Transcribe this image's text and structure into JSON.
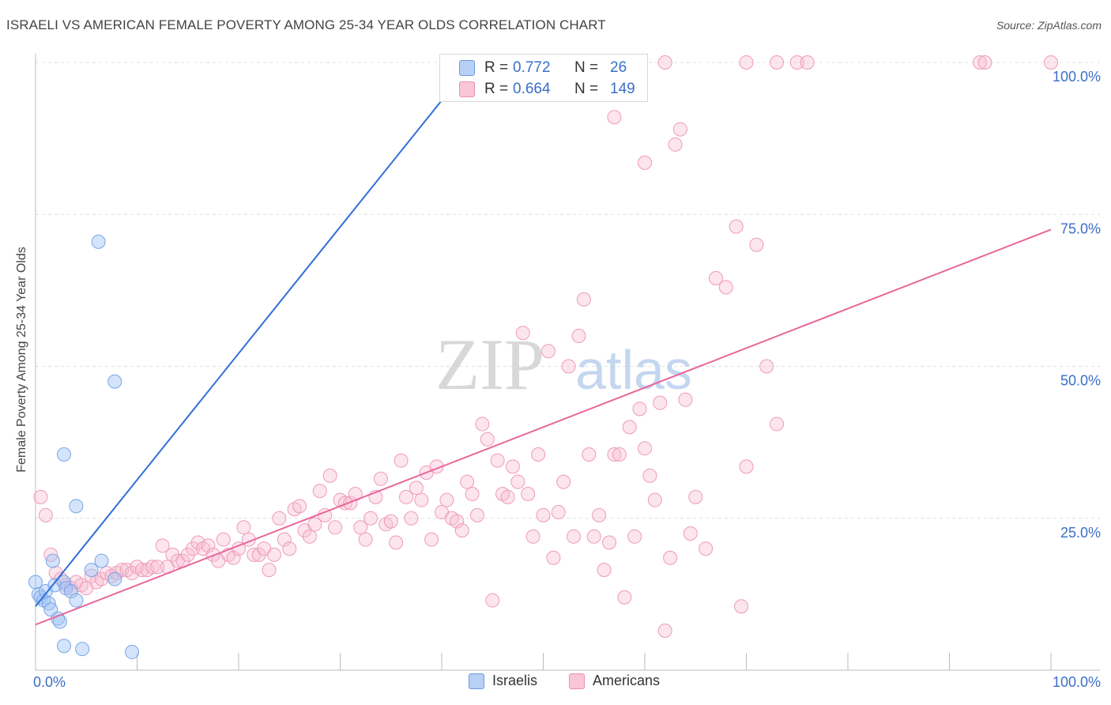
{
  "header": {
    "title": "ISRAELI VS AMERICAN FEMALE POVERTY AMONG 25-34 YEAR OLDS CORRELATION CHART",
    "source": "Source: ZipAtlas.com"
  },
  "watermark": {
    "zip": "ZIP",
    "atlas": "atlas"
  },
  "legend": {
    "rows": [
      {
        "r_label": "R =",
        "r_value": "0.772",
        "n_label": "N =",
        "n_value": "26",
        "fill": "#b8d0f5",
        "stroke": "#6c9ae0"
      },
      {
        "r_label": "R =",
        "r_value": "0.664",
        "n_label": "N =",
        "n_value": "149",
        "fill": "#f9c6d6",
        "stroke": "#ec8fb0"
      }
    ]
  },
  "bottom_legend": {
    "items": [
      {
        "label": "Israelis",
        "fill": "#b8d0f5",
        "stroke": "#6c9ae0"
      },
      {
        "label": "Americans",
        "fill": "#f9c6d6",
        "stroke": "#ec8fb0"
      }
    ]
  },
  "colors": {
    "israeli_line": "#2f6fd6",
    "american_line": "#e8679a",
    "israeli_fill": "rgba(160,195,245,0.45)",
    "israeli_stroke": "#7aa6e6",
    "american_fill": "rgba(248,190,210,0.4)",
    "american_stroke": "#ef9ab9",
    "tick_text": "#3a6fc8"
  },
  "chart_data": {
    "type": "scatter",
    "title": "ISRAELI VS AMERICAN FEMALE POVERTY AMONG 25-34 YEAR OLDS CORRELATION CHART",
    "xlabel": "",
    "ylabel": "Female Poverty Among 25-34 Year Olds",
    "xlim": [
      0,
      100
    ],
    "ylim": [
      0,
      100
    ],
    "x_tick_labels": [
      "0.0%",
      "100.0%"
    ],
    "y_tick_labels": [
      "25.0%",
      "50.0%",
      "75.0%",
      "100.0%"
    ],
    "y_ticks": [
      25,
      50,
      75,
      100
    ],
    "grid": true,
    "legend_position": "top-center",
    "series": [
      {
        "name": "Israelis",
        "r": 0.772,
        "n": 26,
        "trend": {
          "x": [
            0.0,
            43.0
          ],
          "y": [
            10.5,
            100.0
          ]
        },
        "points": [
          [
            0.0,
            14.5
          ],
          [
            0.3,
            12.5
          ],
          [
            0.5,
            12.0
          ],
          [
            0.8,
            11.5
          ],
          [
            1.0,
            13.0
          ],
          [
            1.3,
            11.0
          ],
          [
            1.5,
            10.0
          ],
          [
            1.7,
            18.0
          ],
          [
            1.9,
            14.0
          ],
          [
            2.2,
            8.5
          ],
          [
            2.4,
            8.0
          ],
          [
            2.8,
            14.5
          ],
          [
            3.0,
            13.5
          ],
          [
            3.5,
            13.0
          ],
          [
            4.0,
            11.5
          ],
          [
            2.8,
            35.5
          ],
          [
            4.0,
            27.0
          ],
          [
            2.8,
            4.0
          ],
          [
            4.6,
            3.5
          ],
          [
            5.5,
            16.5
          ],
          [
            6.5,
            18.0
          ],
          [
            7.8,
            15.0
          ],
          [
            9.5,
            3.0
          ],
          [
            6.2,
            70.5
          ],
          [
            7.8,
            47.5
          ],
          [
            43.3,
            100.0
          ]
        ]
      },
      {
        "name": "Americans",
        "r": 0.664,
        "n": 149,
        "trend": {
          "x": [
            0.0,
            100.0
          ],
          "y": [
            7.5,
            72.5
          ]
        },
        "points": [
          [
            0.5,
            28.5
          ],
          [
            1.0,
            25.5
          ],
          [
            1.5,
            19.0
          ],
          [
            2.0,
            16.0
          ],
          [
            2.5,
            15.0
          ],
          [
            3.0,
            14.0
          ],
          [
            3.5,
            13.5
          ],
          [
            4.0,
            14.5
          ],
          [
            4.5,
            14.0
          ],
          [
            5.0,
            13.5
          ],
          [
            5.5,
            15.5
          ],
          [
            6.0,
            14.5
          ],
          [
            6.5,
            15.0
          ],
          [
            7.0,
            16.0
          ],
          [
            7.5,
            15.5
          ],
          [
            8.0,
            16.0
          ],
          [
            8.5,
            16.5
          ],
          [
            9.0,
            16.5
          ],
          [
            9.5,
            16.0
          ],
          [
            10.0,
            17.0
          ],
          [
            10.5,
            16.5
          ],
          [
            11.0,
            16.5
          ],
          [
            11.5,
            17.0
          ],
          [
            12.0,
            17.0
          ],
          [
            12.5,
            20.5
          ],
          [
            13.0,
            17.0
          ],
          [
            13.5,
            19.0
          ],
          [
            14.0,
            18.0
          ],
          [
            14.5,
            18.0
          ],
          [
            15.0,
            19.0
          ],
          [
            15.5,
            20.0
          ],
          [
            16.0,
            21.0
          ],
          [
            16.5,
            20.0
          ],
          [
            17.0,
            20.5
          ],
          [
            17.5,
            19.0
          ],
          [
            18.0,
            18.0
          ],
          [
            18.5,
            21.5
          ],
          [
            19.0,
            19.0
          ],
          [
            19.5,
            18.5
          ],
          [
            20.0,
            20.0
          ],
          [
            20.5,
            23.5
          ],
          [
            21.0,
            21.5
          ],
          [
            21.5,
            19.0
          ],
          [
            22.0,
            19.0
          ],
          [
            22.5,
            20.0
          ],
          [
            23.0,
            16.5
          ],
          [
            23.5,
            19.0
          ],
          [
            24.0,
            25.0
          ],
          [
            24.5,
            21.5
          ],
          [
            25.0,
            20.0
          ],
          [
            25.5,
            26.5
          ],
          [
            26.0,
            27.0
          ],
          [
            26.5,
            23.0
          ],
          [
            27.0,
            22.0
          ],
          [
            27.5,
            24.0
          ],
          [
            28.0,
            29.5
          ],
          [
            28.5,
            25.5
          ],
          [
            29.0,
            32.0
          ],
          [
            29.5,
            23.5
          ],
          [
            30.0,
            28.0
          ],
          [
            30.5,
            27.5
          ],
          [
            31.0,
            27.5
          ],
          [
            31.5,
            29.0
          ],
          [
            32.0,
            23.5
          ],
          [
            32.5,
            21.5
          ],
          [
            33.0,
            25.0
          ],
          [
            33.5,
            28.5
          ],
          [
            34.0,
            31.5
          ],
          [
            34.5,
            24.0
          ],
          [
            35.0,
            24.5
          ],
          [
            35.5,
            21.0
          ],
          [
            36.0,
            34.5
          ],
          [
            36.5,
            28.5
          ],
          [
            37.0,
            25.0
          ],
          [
            37.5,
            30.0
          ],
          [
            38.0,
            28.0
          ],
          [
            38.5,
            32.5
          ],
          [
            39.0,
            21.5
          ],
          [
            39.5,
            33.5
          ],
          [
            40.0,
            26.0
          ],
          [
            40.5,
            28.0
          ],
          [
            41.0,
            25.0
          ],
          [
            41.5,
            24.5
          ],
          [
            42.0,
            23.0
          ],
          [
            42.5,
            31.0
          ],
          [
            43.0,
            29.0
          ],
          [
            43.5,
            25.5
          ],
          [
            44.0,
            40.5
          ],
          [
            44.5,
            38.0
          ],
          [
            45.0,
            11.5
          ],
          [
            45.5,
            34.5
          ],
          [
            46.0,
            29.0
          ],
          [
            46.5,
            28.5
          ],
          [
            47.0,
            33.5
          ],
          [
            47.5,
            31.0
          ],
          [
            48.0,
            55.5
          ],
          [
            48.5,
            29.0
          ],
          [
            49.0,
            22.0
          ],
          [
            49.5,
            35.5
          ],
          [
            50.0,
            25.5
          ],
          [
            50.5,
            52.5
          ],
          [
            51.0,
            18.5
          ],
          [
            51.5,
            26.0
          ],
          [
            52.0,
            31.0
          ],
          [
            52.5,
            50.0
          ],
          [
            53.0,
            22.0
          ],
          [
            53.5,
            55.0
          ],
          [
            54.0,
            61.0
          ],
          [
            54.5,
            35.5
          ],
          [
            55.0,
            22.0
          ],
          [
            55.5,
            25.5
          ],
          [
            56.0,
            16.5
          ],
          [
            56.5,
            21.0
          ],
          [
            57.0,
            35.5
          ],
          [
            57.5,
            35.5
          ],
          [
            58.0,
            12.0
          ],
          [
            58.5,
            40.0
          ],
          [
            59.0,
            22.0
          ],
          [
            59.5,
            43.0
          ],
          [
            60.0,
            36.5
          ],
          [
            60.5,
            32.0
          ],
          [
            61.0,
            28.0
          ],
          [
            61.5,
            44.0
          ],
          [
            62.0,
            6.5
          ],
          [
            62.5,
            18.5
          ],
          [
            63.0,
            86.5
          ],
          [
            63.5,
            89.0
          ],
          [
            64.0,
            44.5
          ],
          [
            64.5,
            22.5
          ],
          [
            65.0,
            28.5
          ],
          [
            66.0,
            20.0
          ],
          [
            67.0,
            64.5
          ],
          [
            68.0,
            63.0
          ],
          [
            69.0,
            73.0
          ],
          [
            69.5,
            10.5
          ],
          [
            70.0,
            33.5
          ],
          [
            71.0,
            70.0
          ],
          [
            72.0,
            50.0
          ],
          [
            73.0,
            40.5
          ],
          [
            57.0,
            91.0
          ],
          [
            60.0,
            83.5
          ],
          [
            62.0,
            100.0
          ],
          [
            70.0,
            100.0
          ],
          [
            73.0,
            100.0
          ],
          [
            75.0,
            100.0
          ],
          [
            76.0,
            100.0
          ],
          [
            93.0,
            100.0
          ],
          [
            93.5,
            100.0
          ],
          [
            100.0,
            100.0
          ]
        ]
      }
    ]
  }
}
